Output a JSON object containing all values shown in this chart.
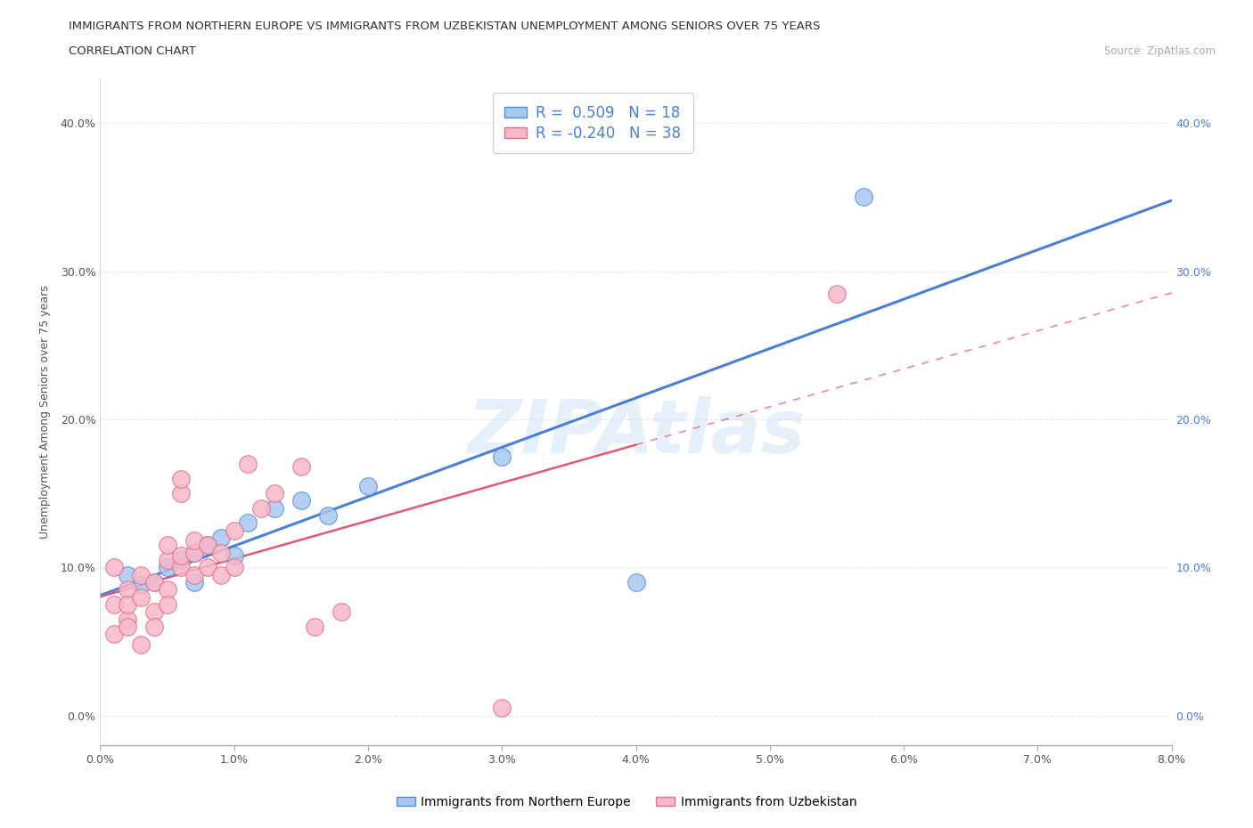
{
  "title_line1": "IMMIGRANTS FROM NORTHERN EUROPE VS IMMIGRANTS FROM UZBEKISTAN UNEMPLOYMENT AMONG SENIORS OVER 75 YEARS",
  "title_line2": "CORRELATION CHART",
  "source": "Source: ZipAtlas.com",
  "ylabel": "Unemployment Among Seniors over 75 years",
  "xlim": [
    0.0,
    0.08
  ],
  "ylim": [
    -0.02,
    0.43
  ],
  "xticks": [
    0.0,
    0.01,
    0.02,
    0.03,
    0.04,
    0.05,
    0.06,
    0.07,
    0.08
  ],
  "yticks": [
    0.0,
    0.1,
    0.2,
    0.3,
    0.4
  ],
  "blue_R": 0.509,
  "blue_N": 18,
  "pink_R": -0.24,
  "pink_N": 38,
  "blue_color": "#a8c8f0",
  "pink_color": "#f8b8c8",
  "blue_edge_color": "#5090d0",
  "pink_edge_color": "#e07090",
  "blue_line_color": "#4a7fd4",
  "pink_line_color": "#e05878",
  "right_axis_color": "#4a7fd4",
  "watermark": "ZIPAtlas",
  "watermark_color": "#d0e4f8",
  "legend_label_blue": "Immigrants from Northern Europe",
  "legend_label_pink": "Immigrants from Uzbekistan",
  "blue_points_x": [
    0.002,
    0.003,
    0.004,
    0.005,
    0.006,
    0.007,
    0.007,
    0.008,
    0.009,
    0.01,
    0.011,
    0.013,
    0.015,
    0.017,
    0.02,
    0.03,
    0.04,
    0.057
  ],
  "blue_points_y": [
    0.095,
    0.088,
    0.09,
    0.1,
    0.105,
    0.11,
    0.09,
    0.115,
    0.12,
    0.108,
    0.13,
    0.14,
    0.145,
    0.135,
    0.155,
    0.175,
    0.09,
    0.35
  ],
  "pink_points_x": [
    0.001,
    0.001,
    0.001,
    0.002,
    0.002,
    0.002,
    0.002,
    0.003,
    0.003,
    0.003,
    0.004,
    0.004,
    0.004,
    0.005,
    0.005,
    0.005,
    0.005,
    0.006,
    0.006,
    0.006,
    0.006,
    0.007,
    0.007,
    0.007,
    0.008,
    0.008,
    0.009,
    0.009,
    0.01,
    0.01,
    0.011,
    0.012,
    0.013,
    0.015,
    0.016,
    0.018,
    0.03,
    0.055
  ],
  "pink_points_y": [
    0.1,
    0.075,
    0.055,
    0.065,
    0.085,
    0.075,
    0.06,
    0.095,
    0.08,
    0.048,
    0.09,
    0.07,
    0.06,
    0.105,
    0.085,
    0.075,
    0.115,
    0.1,
    0.15,
    0.16,
    0.108,
    0.095,
    0.11,
    0.118,
    0.1,
    0.115,
    0.095,
    0.11,
    0.1,
    0.125,
    0.17,
    0.14,
    0.15,
    0.168,
    0.06,
    0.07,
    0.005,
    0.285
  ],
  "background_color": "#ffffff",
  "grid_color": "#e8e8e8"
}
